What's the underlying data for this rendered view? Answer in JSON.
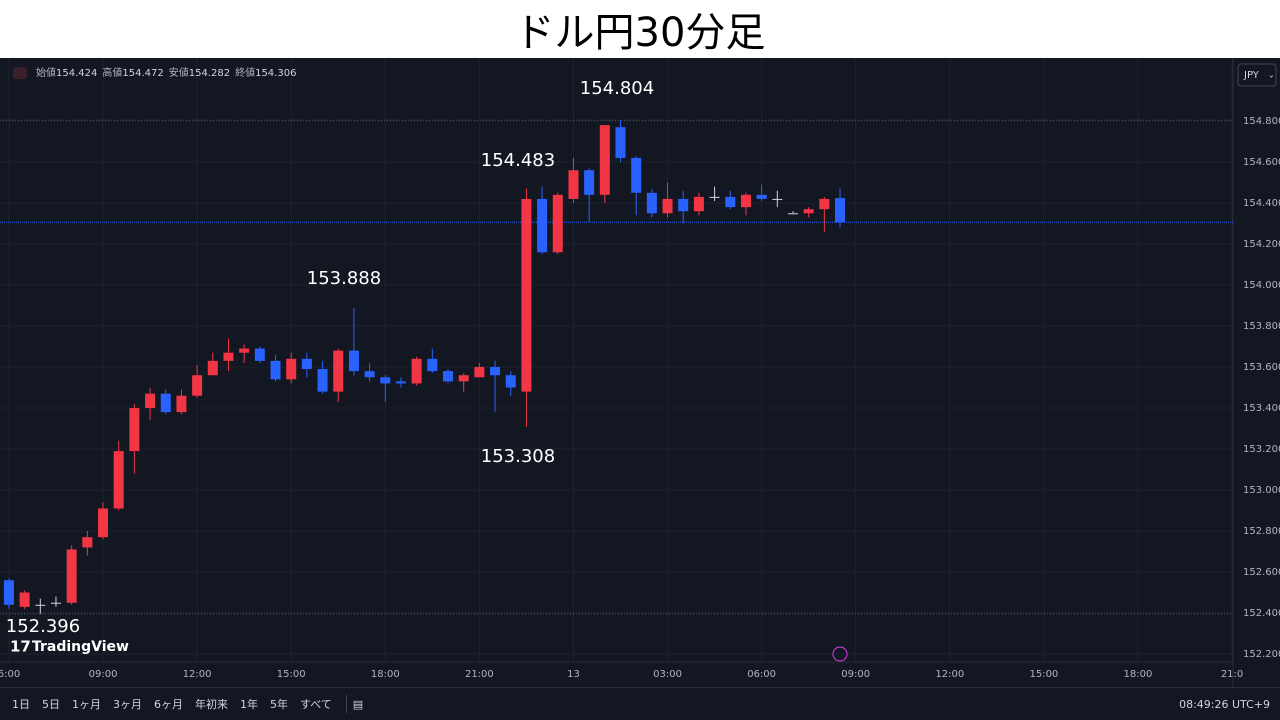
{
  "chart_data": {
    "type": "candlestick",
    "title": "ドル円30分足",
    "ohlc_header": [
      {
        "label": "始値",
        "value": "154.424"
      },
      {
        "label": "高値",
        "value": "154.472"
      },
      {
        "label": "安値",
        "value": "154.282"
      },
      {
        "label": "終値",
        "value": "154.306"
      }
    ],
    "currency": "JPY",
    "brand": "TradingView",
    "annotations": [
      "154.804",
      "154.483",
      "153.888",
      "153.308",
      "152.396"
    ],
    "open": [
      152.56,
      152.43,
      152.44,
      152.45,
      152.45,
      152.72,
      152.77,
      152.91,
      153.19,
      153.4,
      153.47,
      153.38,
      153.46,
      153.56,
      153.63,
      153.67,
      153.69,
      153.63,
      153.54,
      153.64,
      153.59,
      153.48,
      153.68,
      153.58,
      153.55,
      153.53,
      153.52,
      153.64,
      153.58,
      153.53,
      153.55,
      153.6,
      153.56,
      153.48,
      154.42,
      154.16,
      154.42,
      154.56,
      154.44,
      154.77,
      154.62,
      154.45,
      154.35,
      154.42,
      154.36,
      154.43,
      154.43,
      154.38,
      154.44,
      154.42,
      154.35,
      154.35,
      154.37,
      154.424
    ],
    "high": [
      152.57,
      152.51,
      152.47,
      152.48,
      152.73,
      152.8,
      152.94,
      153.24,
      153.42,
      153.5,
      153.49,
      153.49,
      153.61,
      153.67,
      153.74,
      153.71,
      153.7,
      153.66,
      153.67,
      153.67,
      153.63,
      153.69,
      153.888,
      153.62,
      153.56,
      153.55,
      153.65,
      153.69,
      153.59,
      153.57,
      153.62,
      153.63,
      153.58,
      154.47,
      154.48,
      154.45,
      154.62,
      154.57,
      154.78,
      154.804,
      154.63,
      154.47,
      154.5,
      154.46,
      154.45,
      154.48,
      154.46,
      154.45,
      154.49,
      154.46,
      154.36,
      154.38,
      154.43,
      154.472
    ],
    "low": [
      152.42,
      152.42,
      152.396,
      152.43,
      152.44,
      152.68,
      152.76,
      152.9,
      153.08,
      153.34,
      153.37,
      153.37,
      153.45,
      153.56,
      153.58,
      153.62,
      153.62,
      153.53,
      153.52,
      153.55,
      153.47,
      153.43,
      153.56,
      153.53,
      153.43,
      153.5,
      153.51,
      153.57,
      153.52,
      153.48,
      153.55,
      153.38,
      153.46,
      153.308,
      154.15,
      154.15,
      154.4,
      154.31,
      154.4,
      154.6,
      154.34,
      154.33,
      154.33,
      154.3,
      154.34,
      154.41,
      154.37,
      154.34,
      154.41,
      154.38,
      154.35,
      154.33,
      154.26,
      154.282
    ],
    "close": [
      152.44,
      152.5,
      152.44,
      152.45,
      152.71,
      152.77,
      152.91,
      153.19,
      153.4,
      153.47,
      153.38,
      153.46,
      153.56,
      153.63,
      153.67,
      153.69,
      153.63,
      153.54,
      153.64,
      153.59,
      153.48,
      153.68,
      153.58,
      153.55,
      153.52,
      153.52,
      153.64,
      153.58,
      153.53,
      153.56,
      153.6,
      153.56,
      153.5,
      154.42,
      154.16,
      154.44,
      154.56,
      154.44,
      154.78,
      154.62,
      154.45,
      154.35,
      154.42,
      154.36,
      154.43,
      154.43,
      154.38,
      154.44,
      154.42,
      154.42,
      154.35,
      154.37,
      154.42,
      154.306
    ],
    "up_color": "#f23645",
    "down_color": "#2962ff",
    "ylim": [
      152.161,
      155.088
    ],
    "yticks": [
      {
        "value": 152.2,
        "label": "152.200"
      },
      {
        "value": 152.4,
        "label": "152.400"
      },
      {
        "value": 152.6,
        "label": "152.600"
      },
      {
        "value": 152.8,
        "label": "152.800"
      },
      {
        "value": 153.0,
        "label": "153.000"
      },
      {
        "value": 153.2,
        "label": "153.200"
      },
      {
        "value": 153.4,
        "label": "153.400"
      },
      {
        "value": 153.6,
        "label": "153.600"
      },
      {
        "value": 153.8,
        "label": "153.800"
      },
      {
        "value": 154.0,
        "label": "154.000"
      },
      {
        "value": 154.2,
        "label": "154.200"
      },
      {
        "value": 154.4,
        "label": "154.400"
      },
      {
        "value": 154.6,
        "label": "154.600"
      },
      {
        "value": 154.8,
        "label": "154.800"
      }
    ],
    "xlim": [
      -0.57,
      78.06
    ],
    "xticks": [
      {
        "value": 0,
        "label": "6:00"
      },
      {
        "value": 6,
        "label": "09:00"
      },
      {
        "value": 12,
        "label": "12:00"
      },
      {
        "value": 18,
        "label": "15:00"
      },
      {
        "value": 24,
        "label": "18:00"
      },
      {
        "value": 30,
        "label": "21:00"
      },
      {
        "value": 36,
        "label": "13"
      },
      {
        "value": 42,
        "label": "03:00"
      },
      {
        "value": 48,
        "label": "06:00"
      },
      {
        "value": 54,
        "label": "09:00"
      },
      {
        "value": 60,
        "label": "12:00"
      },
      {
        "value": 66,
        "label": "15:00"
      },
      {
        "value": 72,
        "label": "18:00"
      },
      {
        "value": 78,
        "label": "21:0"
      }
    ],
    "grid": true,
    "ranges": [
      "1日",
      "5日",
      "1ヶ月",
      "3ヶ月",
      "6ヶ月",
      "年初来",
      "1年",
      "5年",
      "すべて"
    ],
    "clock": "08:49:26 UTC+9"
  }
}
